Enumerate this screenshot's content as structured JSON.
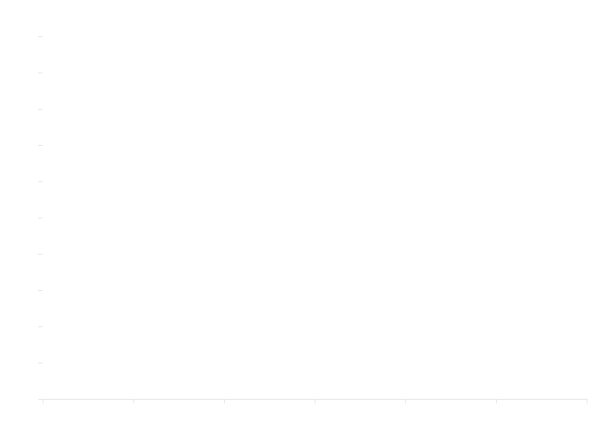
{
  "chart_data": {
    "type": "line",
    "title": "",
    "xlabel": "",
    "ylabel": "",
    "x_tick_count": 7,
    "y_tick_count": 11,
    "x_tick_labels": [],
    "y_tick_labels": [],
    "series": [],
    "grid": false,
    "legend": "none",
    "colors": {
      "axis": "#e6e6e6",
      "tick": "#e6e6e6",
      "background": "#ffffff"
    }
  }
}
